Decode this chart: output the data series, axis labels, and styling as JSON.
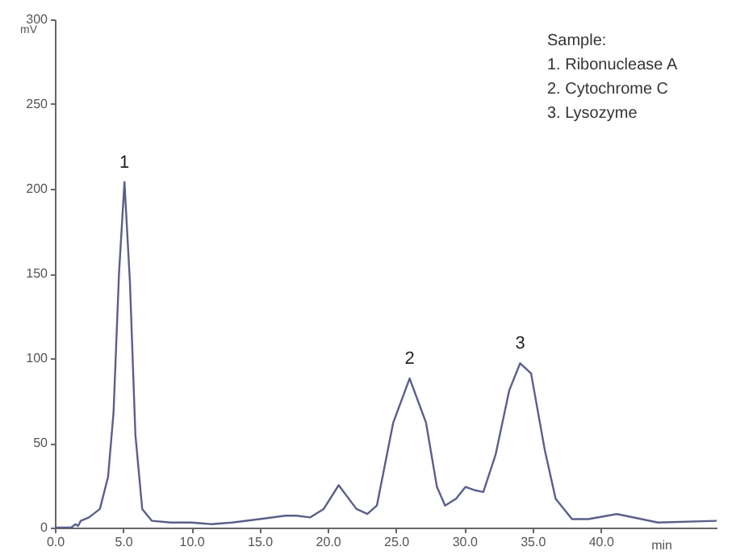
{
  "chart_data": {
    "type": "line",
    "xlabel": "min",
    "ylabel": "mV",
    "x": [
      0,
      1.2,
      1.5,
      1.7,
      1.9,
      2.5,
      3.3,
      3.9,
      4.3,
      4.7,
      5.1,
      5.5,
      5.9,
      6.4,
      7.1,
      8.5,
      10,
      11.5,
      13,
      15,
      16.9,
      17.7,
      18.7,
      19.7,
      20.8,
      22.1,
      22.9,
      23.6,
      24.8,
      26,
      27.2,
      28,
      28.6,
      29.4,
      30.1,
      30.8,
      31.4,
      32.3,
      33.3,
      34.1,
      34.9,
      35.9,
      36.7,
      37.9,
      39.1,
      41.2,
      43,
      44.2,
      48.5
    ],
    "series": [
      {
        "color": "#5a5f8a",
        "values": [
          0,
          0,
          2,
          1,
          4,
          6,
          11,
          30,
          68,
          150,
          204,
          145,
          55,
          11,
          4,
          3,
          3,
          2,
          3,
          5,
          7,
          7,
          6,
          11,
          25,
          11,
          8,
          13,
          62,
          88,
          62,
          24,
          13,
          17,
          24,
          22,
          21,
          43,
          81,
          97,
          91,
          46,
          17,
          5,
          5,
          8,
          5,
          3,
          4
        ]
      }
    ],
    "xlim": [
      0,
      48.5
    ],
    "xticks": [
      {
        "value": 0,
        "label": "0.0"
      },
      {
        "value": 5,
        "label": "5.0"
      },
      {
        "value": 10,
        "label": "10.0"
      },
      {
        "value": 15,
        "label": "15.0"
      },
      {
        "value": 20,
        "label": "20.0"
      },
      {
        "value": 25,
        "label": "25.0"
      },
      {
        "value": 30,
        "label": "30.0"
      },
      {
        "value": 35,
        "label": "35.0"
      },
      {
        "value": 40,
        "label": "40.0"
      }
    ],
    "ylim": [
      0,
      300
    ],
    "yticks": [
      0,
      50,
      100,
      150,
      200,
      250,
      300
    ],
    "grid": false,
    "annotations": [
      {
        "text": "1",
        "x": 5.1,
        "y": 204
      },
      {
        "text": "2",
        "x": 26,
        "y": 88
      },
      {
        "text": "3",
        "x": 34.1,
        "y": 97
      },
      "Sample:",
      "1. Ribonuclease A",
      "2. Cytochrome C",
      "3. Lysozyme"
    ]
  }
}
